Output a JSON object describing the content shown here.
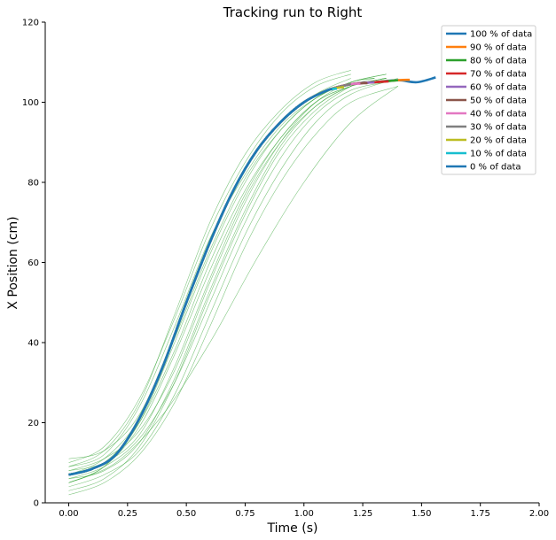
{
  "chart_data": {
    "type": "line",
    "title": "Tracking run to Right",
    "xlabel": "Time (s)",
    "ylabel": "X Position (cm)",
    "xlim": [
      -0.1,
      2.0
    ],
    "ylim": [
      0,
      120
    ],
    "x_ticks": [
      0.0,
      0.25,
      0.5,
      0.75,
      1.0,
      1.25,
      1.5,
      1.75,
      2.0
    ],
    "x_tick_labels": [
      "0.00",
      "0.25",
      "0.50",
      "0.75",
      "1.00",
      "1.25",
      "1.50",
      "1.75",
      "2.00"
    ],
    "y_ticks": [
      0,
      20,
      40,
      60,
      80,
      100,
      120
    ],
    "y_tick_labels": [
      "0",
      "20",
      "40",
      "60",
      "80",
      "100",
      "120"
    ],
    "grid": false,
    "legend_position": "top-right",
    "background_trials": {
      "color": "#2ca02c",
      "note_kind": "individual trial curves (thin green lines)",
      "trials": [
        {
          "x": [
            0.0,
            0.15,
            0.3,
            0.45,
            0.6,
            0.75,
            0.9,
            1.05,
            1.2,
            1.3
          ],
          "y": [
            3,
            6,
            14,
            30,
            52,
            72,
            88,
            98,
            104,
            106
          ]
        },
        {
          "x": [
            0.0,
            0.15,
            0.3,
            0.45,
            0.6,
            0.75,
            0.9,
            1.05,
            1.2,
            1.35
          ],
          "y": [
            5,
            9,
            20,
            40,
            62,
            80,
            93,
            101,
            105,
            107
          ]
        },
        {
          "x": [
            0.0,
            0.15,
            0.3,
            0.45,
            0.6,
            0.75,
            0.9,
            1.05,
            1.2
          ],
          "y": [
            10,
            14,
            26,
            46,
            68,
            85,
            97,
            104,
            107
          ]
        },
        {
          "x": [
            0.0,
            0.15,
            0.3,
            0.45,
            0.6,
            0.75,
            0.9,
            1.05,
            1.2,
            1.3
          ],
          "y": [
            8,
            11,
            18,
            33,
            55,
            75,
            90,
            100,
            105,
            106
          ]
        },
        {
          "x": [
            0.0,
            0.15,
            0.3,
            0.45,
            0.6,
            0.75,
            0.9,
            1.05,
            1.2,
            1.35
          ],
          "y": [
            6,
            9,
            16,
            30,
            50,
            70,
            86,
            97,
            103,
            105
          ]
        },
        {
          "x": [
            0.0,
            0.15,
            0.3,
            0.45,
            0.6,
            0.75,
            0.9,
            1.05,
            1.2,
            1.35
          ],
          "y": [
            7,
            10,
            20,
            38,
            60,
            78,
            91,
            100,
            104,
            106
          ]
        },
        {
          "x": [
            0.0,
            0.15,
            0.3,
            0.45,
            0.6,
            0.75,
            0.9,
            1.05,
            1.2
          ],
          "y": [
            11,
            13,
            22,
            42,
            65,
            83,
            95,
            102,
            106
          ]
        },
        {
          "x": [
            0.0,
            0.15,
            0.3,
            0.45,
            0.6,
            0.75,
            0.9,
            1.05,
            1.2,
            1.4
          ],
          "y": [
            4,
            7,
            13,
            27,
            47,
            67,
            83,
            95,
            102,
            106
          ]
        },
        {
          "x": [
            0.0,
            0.2,
            0.4,
            0.6,
            0.8,
            1.0,
            1.2,
            1.4
          ],
          "y": [
            5,
            10,
            22,
            40,
            61,
            80,
            95,
            104
          ]
        },
        {
          "x": [
            0.0,
            0.15,
            0.3,
            0.45,
            0.6,
            0.75,
            0.9,
            1.05,
            1.2,
            1.35
          ],
          "y": [
            9,
            12,
            24,
            44,
            66,
            82,
            94,
            101,
            105,
            107
          ]
        },
        {
          "x": [
            0.0,
            0.15,
            0.3,
            0.45,
            0.6,
            0.75,
            0.9,
            1.05,
            1.2,
            1.35
          ],
          "y": [
            6,
            8,
            15,
            31,
            53,
            73,
            89,
            99,
            104,
            106
          ]
        },
        {
          "x": [
            0.0,
            0.15,
            0.3,
            0.45,
            0.6,
            0.75,
            0.9,
            1.05,
            1.2,
            1.3
          ],
          "y": [
            7,
            11,
            21,
            41,
            63,
            81,
            93,
            101,
            105,
            106
          ]
        },
        {
          "x": [
            0.0,
            0.15,
            0.3,
            0.45,
            0.6,
            0.75,
            0.9,
            1.05,
            1.2,
            1.4
          ],
          "y": [
            2,
            5,
            12,
            25,
            44,
            64,
            80,
            92,
            100,
            104
          ]
        },
        {
          "x": [
            0.0,
            0.15,
            0.3,
            0.45,
            0.6,
            0.75,
            0.9,
            1.05,
            1.2
          ],
          "y": [
            9,
            13,
            25,
            47,
            70,
            87,
            98,
            105,
            108
          ]
        },
        {
          "x": [
            0.0,
            0.15,
            0.3,
            0.45,
            0.6,
            0.75,
            0.9,
            1.05,
            1.2,
            1.35
          ],
          "y": [
            8,
            10,
            17,
            34,
            56,
            76,
            90,
            99,
            104,
            106
          ]
        },
        {
          "x": [
            0.0,
            0.15,
            0.3,
            0.45,
            0.6,
            0.75,
            0.9,
            1.05,
            1.2,
            1.35
          ],
          "y": [
            5,
            9,
            19,
            37,
            58,
            77,
            91,
            100,
            104,
            106
          ]
        }
      ]
    },
    "series": [
      {
        "name": "100 % of data",
        "color": "#1f77b4",
        "x": [
          0.0,
          0.1,
          0.2,
          0.3,
          0.4,
          0.5,
          0.6,
          0.7,
          0.8,
          0.9,
          1.0,
          1.1,
          1.2,
          1.3,
          1.4,
          1.48,
          1.56
        ],
        "y": [
          7,
          8.5,
          12,
          21,
          34,
          50,
          65,
          78,
          88,
          95,
          100,
          103,
          104.5,
          105,
          105.5,
          105,
          106.2
        ]
      },
      {
        "name": "90 % of data",
        "color": "#ff7f0e",
        "x": [
          0.0,
          0.1,
          0.2,
          0.3,
          0.4,
          0.5,
          0.6,
          0.7,
          0.8,
          0.9,
          1.0,
          1.1,
          1.2,
          1.3,
          1.4,
          1.45
        ],
        "y": [
          7,
          8.5,
          12,
          21,
          34,
          50,
          65,
          78,
          88,
          95,
          100,
          103,
          104.5,
          105,
          105.5,
          105.6
        ]
      },
      {
        "name": "80 % of data",
        "color": "#2ca02c",
        "x": [
          0.0,
          0.1,
          0.2,
          0.3,
          0.4,
          0.5,
          0.6,
          0.7,
          0.8,
          0.9,
          1.0,
          1.1,
          1.2,
          1.3,
          1.4
        ],
        "y": [
          7,
          8.5,
          12,
          21,
          34,
          50,
          65,
          78,
          88,
          95,
          100,
          103,
          104.5,
          105,
          105.5
        ]
      },
      {
        "name": "70 % of data",
        "color": "#d62728",
        "x": [
          0.0,
          0.1,
          0.2,
          0.3,
          0.4,
          0.5,
          0.6,
          0.7,
          0.8,
          0.9,
          1.0,
          1.1,
          1.2,
          1.3,
          1.36
        ],
        "y": [
          7,
          8.5,
          12,
          21,
          34,
          50,
          65,
          78,
          88,
          95,
          100,
          103,
          104.5,
          105,
          105.2
        ]
      },
      {
        "name": "60 % of data",
        "color": "#9467bd",
        "x": [
          0.0,
          0.1,
          0.2,
          0.3,
          0.4,
          0.5,
          0.6,
          0.7,
          0.8,
          0.9,
          1.0,
          1.1,
          1.2,
          1.3
        ],
        "y": [
          7,
          8.5,
          12,
          21,
          34,
          50,
          65,
          78,
          88,
          95,
          100,
          103,
          104.5,
          105
        ]
      },
      {
        "name": "50 % of data",
        "color": "#8c564b",
        "x": [
          0.0,
          0.1,
          0.2,
          0.3,
          0.4,
          0.5,
          0.6,
          0.7,
          0.8,
          0.9,
          1.0,
          1.1,
          1.2,
          1.27
        ],
        "y": [
          7,
          8.5,
          12,
          21,
          34,
          50,
          65,
          78,
          88,
          95,
          100,
          103,
          104.5,
          104.8
        ]
      },
      {
        "name": "40 % of data",
        "color": "#e377c2",
        "x": [
          0.0,
          0.1,
          0.2,
          0.3,
          0.4,
          0.5,
          0.6,
          0.7,
          0.8,
          0.9,
          1.0,
          1.1,
          1.2,
          1.24
        ],
        "y": [
          7,
          8.5,
          12,
          21,
          34,
          50,
          65,
          78,
          88,
          95,
          100,
          103,
          104.5,
          104.6
        ]
      },
      {
        "name": "30 % of data",
        "color": "#7f7f7f",
        "x": [
          0.0,
          0.1,
          0.2,
          0.3,
          0.4,
          0.5,
          0.6,
          0.7,
          0.8,
          0.9,
          1.0,
          1.1,
          1.2
        ],
        "y": [
          7,
          8.5,
          12,
          21,
          34,
          50,
          65,
          78,
          88,
          95,
          100,
          103,
          104.5
        ]
      },
      {
        "name": "20 % of data",
        "color": "#bcbd22",
        "x": [
          0.0,
          0.1,
          0.2,
          0.3,
          0.4,
          0.5,
          0.6,
          0.7,
          0.8,
          0.9,
          1.0,
          1.1,
          1.17
        ],
        "y": [
          7,
          8.5,
          12,
          21,
          34,
          50,
          65,
          78,
          88,
          95,
          100,
          103,
          103.8
        ]
      },
      {
        "name": "10 % of data",
        "color": "#17becf",
        "x": [
          0.0,
          0.1,
          0.2,
          0.3,
          0.4,
          0.5,
          0.6,
          0.7,
          0.8,
          0.9,
          1.0,
          1.1,
          1.14
        ],
        "y": [
          7,
          8.5,
          12,
          21,
          34,
          50,
          65,
          78,
          88,
          95,
          100,
          103,
          103.4
        ]
      },
      {
        "name": "0 % of data",
        "color": "#1f77b4",
        "x": [
          0.0,
          0.1,
          0.2,
          0.3,
          0.4,
          0.5,
          0.6,
          0.7,
          0.8,
          0.9,
          1.0,
          1.1,
          1.12
        ],
        "y": [
          7,
          8.5,
          12,
          21,
          34,
          50,
          65,
          78,
          88,
          95,
          100,
          103,
          103.2
        ]
      }
    ]
  }
}
